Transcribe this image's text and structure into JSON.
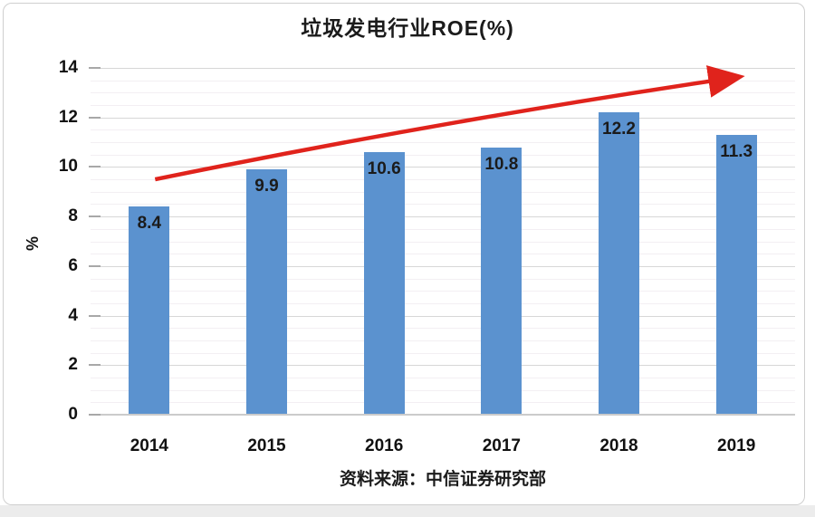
{
  "chart_data": {
    "type": "bar",
    "title": "垃圾发电行业ROE(%)",
    "categories": [
      "2014",
      "2015",
      "2016",
      "2017",
      "2018",
      "2019"
    ],
    "values": [
      8.4,
      9.9,
      10.6,
      10.8,
      12.2,
      11.3
    ],
    "value_labels": [
      "8.4",
      "9.9",
      "10.6",
      "10.8",
      "12.2",
      "11.3"
    ],
    "xlabel": "",
    "ylabel": "%",
    "ylim": [
      0,
      14
    ],
    "ytick_step": 2,
    "minor_grid_step": 0.5,
    "grid": "on",
    "legend": "none",
    "bar_color": "#5B92CF",
    "value_label_color": "#1b1b1b",
    "trend_arrow": {
      "color": "#E0231C",
      "from": {
        "category_index": 0.05,
        "value": 9.5
      },
      "to": {
        "category_index": 4.97,
        "value": 13.6
      }
    }
  },
  "source": {
    "text": "资料来源：中信证券研究部"
  }
}
